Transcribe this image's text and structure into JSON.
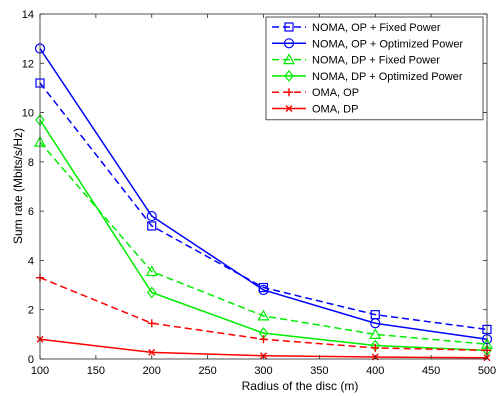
{
  "chart_data": {
    "type": "line",
    "xlabel": "Radius of the disc (m)",
    "ylabel": "Sum rate (Mbits/s/Hz)",
    "xlim": [
      100,
      500
    ],
    "ylim": [
      0,
      14
    ],
    "xticks": [
      100,
      150,
      200,
      250,
      300,
      350,
      400,
      450,
      500
    ],
    "yticks": [
      0,
      2,
      4,
      6,
      8,
      10,
      12,
      14
    ],
    "grid": false,
    "legend_position": "top-right",
    "x": [
      100,
      200,
      300,
      400,
      500
    ],
    "series": [
      {
        "name": "NOMA, OP + Fixed Power",
        "values": [
          11.2,
          5.4,
          2.9,
          1.8,
          1.2
        ],
        "color": "#0000ff",
        "dash": "dashed",
        "marker": "square"
      },
      {
        "name": "NOMA, OP + Optimized Power",
        "values": [
          12.6,
          5.8,
          2.8,
          1.45,
          0.8
        ],
        "color": "#0000ff",
        "dash": "solid",
        "marker": "circle"
      },
      {
        "name": "NOMA, DP + Fixed Power",
        "values": [
          8.8,
          3.55,
          1.75,
          1.0,
          0.6
        ],
        "color": "#00ee00",
        "dash": "dashed",
        "marker": "triangle"
      },
      {
        "name": "NOMA, DP + Optimized Power",
        "values": [
          9.7,
          2.7,
          1.05,
          0.55,
          0.35
        ],
        "color": "#00ee00",
        "dash": "solid",
        "marker": "diamond"
      },
      {
        "name": "OMA, OP",
        "values": [
          3.3,
          1.45,
          0.8,
          0.45,
          0.35
        ],
        "color": "#ff0000",
        "dash": "dashed",
        "marker": "plus"
      },
      {
        "name": "OMA, DP",
        "values": [
          0.8,
          0.27,
          0.13,
          0.08,
          0.05
        ],
        "color": "#ff0000",
        "dash": "solid",
        "marker": "x"
      }
    ]
  }
}
